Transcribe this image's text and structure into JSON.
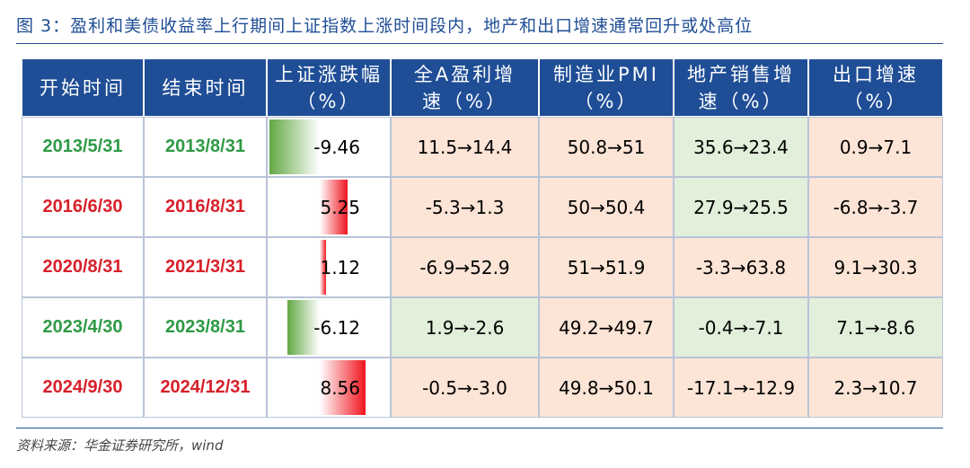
{
  "title": "图 3：盈利和美债收益率上行期间上证指数上涨时间段内，地产和出口增速通常回升或处高位",
  "table": {
    "header": [
      [
        "开始时间"
      ],
      [
        "结束时间"
      ],
      [
        "上证涨跌幅",
        "（%）"
      ],
      [
        "全A盈利增",
        "速（%）"
      ],
      [
        "制造业PMI",
        "（%）"
      ],
      [
        "地产销售增",
        "速（%）"
      ],
      [
        "出口增速",
        "（%）"
      ]
    ],
    "rows": [
      {
        "start": "2013/5/31",
        "end": "2013/8/31",
        "change": -9.46,
        "items": [
          "11.5→14.4",
          "50.8→51",
          "35.6→23.4",
          "0.9→7.1"
        ],
        "text_color": "#2e9a45",
        "fills": [
          "#fce4d6",
          "#fce4d6",
          "#e2efda",
          "#fce4d6"
        ]
      },
      {
        "start": "2016/6/30",
        "end": "2016/8/31",
        "change": 5.25,
        "items": [
          "-5.3→1.3",
          "50→50.4",
          "27.9→25.5",
          "-6.8→-3.7"
        ],
        "text_color": "#d7202a",
        "fills": [
          "#fce4d6",
          "#fce4d6",
          "#e2efda",
          "#fce4d6"
        ]
      },
      {
        "start": "2020/8/31",
        "end": "2021/3/31",
        "change": 1.12,
        "items": [
          "-6.9→52.9",
          "51→51.9",
          "-3.3→63.8",
          "9.1→30.3"
        ],
        "text_color": "#d7202a",
        "fills": [
          "#fce4d6",
          "#fce4d6",
          "#fce4d6",
          "#fce4d6"
        ]
      },
      {
        "start": "2023/4/30",
        "end": "2023/8/31",
        "change": -6.12,
        "items": [
          "1.9→-2.6",
          "49.2→49.7",
          "-0.4→-7.1",
          "7.1→-8.6"
        ],
        "text_color": "#2e9a45",
        "fills": [
          "#e2efda",
          "#fce4d6",
          "#e2efda",
          "#e2efda"
        ]
      },
      {
        "start": "2024/9/30",
        "end": "2024/12/31",
        "change": 8.56,
        "items": [
          "-0.5→-3.0",
          "49.8→50.1",
          "-17.1→-12.9",
          "2.3→10.7"
        ],
        "text_color": "#d7202a",
        "fills": [
          "#fce4d6",
          "#fce4d6",
          "#fce4d6",
          "#fce4d6"
        ]
      }
    ],
    "header_color": "#1f4e96",
    "bar_colors": {
      "negative": "#63a844",
      "positive": "#f0141e"
    }
  },
  "source": "资料来源：华金证券研究所，wind"
}
